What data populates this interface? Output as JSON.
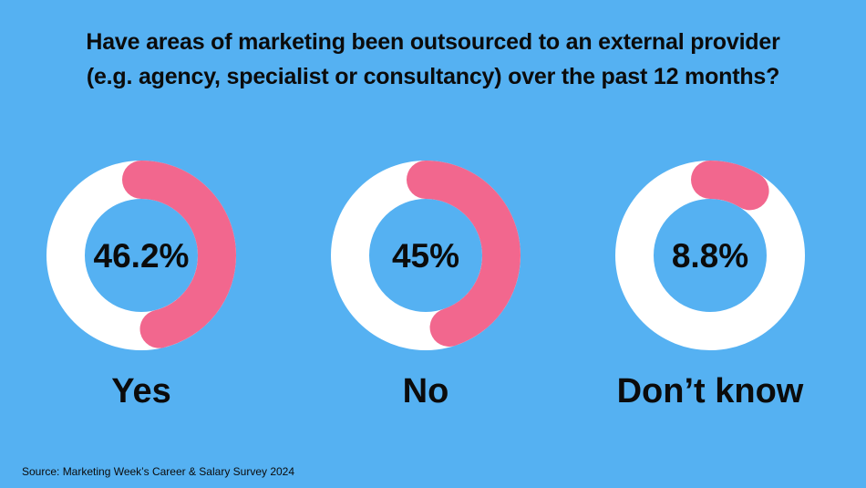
{
  "background_color": "#55b1f2",
  "ring_track_color": "#ffffff",
  "ring_value_color": "#f2678e",
  "title_lines": [
    "Have areas of marketing been outsourced to an external provider",
    "(e.g. agency, specialist or consultancy) over the past 12 months?"
  ],
  "source": "Source: Marketing Week’s Career & Salary Survey 2024",
  "chart_data": {
    "type": "pie",
    "title": "Have areas of marketing been outsourced to an external provider (e.g. agency, specialist or consultancy) over the past 12 months?",
    "unit": "%",
    "categories": [
      "Yes",
      "No",
      "Don’t know"
    ],
    "values": [
      46.2,
      45,
      8.8
    ],
    "value_labels": [
      "46.2%",
      "45%",
      "8.8%"
    ]
  }
}
